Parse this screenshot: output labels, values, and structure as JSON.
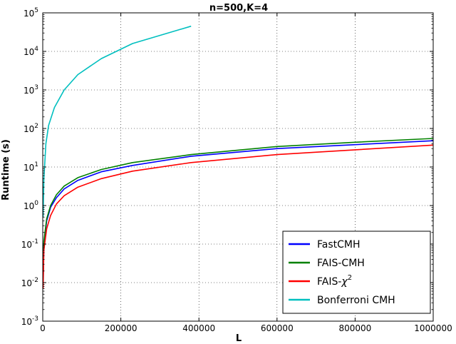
{
  "chart_data": {
    "type": "line",
    "title": "n=500,K=4",
    "xlabel": "L",
    "ylabel": "Runtime (s)",
    "xlim": [
      0,
      1000000
    ],
    "ylim_log10": [
      -3,
      5
    ],
    "yscale": "log",
    "grid": true,
    "legend_position": "lower-right",
    "x_ticks": [
      0,
      200000,
      400000,
      600000,
      800000,
      1000000
    ],
    "x_tick_labels": [
      "0",
      "200000",
      "400000",
      "600000",
      "800000",
      "1000000"
    ],
    "y_ticks": [
      {
        "base": "10",
        "exp": "-3"
      },
      {
        "base": "10",
        "exp": "-2"
      },
      {
        "base": "10",
        "exp": "-1"
      },
      {
        "base": "10",
        "exp": "0"
      },
      {
        "base": "10",
        "exp": "1"
      },
      {
        "base": "10",
        "exp": "2"
      },
      {
        "base": "10",
        "exp": "3"
      },
      {
        "base": "10",
        "exp": "4"
      },
      {
        "base": "10",
        "exp": "5"
      }
    ],
    "series": [
      {
        "name": "FastCMH",
        "color": "#0000ff",
        "x": [
          1000,
          3000,
          10000,
          20000,
          35000,
          55000,
          90000,
          150000,
          230000,
          380000,
          600000,
          800000,
          1000000
        ],
        "y": [
          0.01,
          0.1,
          0.4,
          0.9,
          1.6,
          2.7,
          4.5,
          7.5,
          11.0,
          19.0,
          30.0,
          38.0,
          48.0
        ]
      },
      {
        "name": "FAIS-CMH",
        "color": "#008000",
        "x": [
          1000,
          3000,
          10000,
          20000,
          35000,
          55000,
          90000,
          150000,
          230000,
          380000,
          600000,
          800000,
          1000000
        ],
        "y": [
          0.012,
          0.12,
          0.45,
          1.0,
          1.9,
          3.2,
          5.3,
          8.6,
          13.0,
          21.0,
          34.0,
          44.0,
          55.0
        ]
      },
      {
        "name": "FAIS-χ²",
        "name_main": "FAIS-",
        "name_chi": "χ",
        "name_sup": "2",
        "color": "#ff0000",
        "x": [
          1000,
          3000,
          10000,
          20000,
          35000,
          55000,
          90000,
          150000,
          230000,
          380000,
          600000,
          800000,
          1000000
        ],
        "y": [
          0.007,
          0.07,
          0.25,
          0.55,
          1.1,
          1.8,
          3.0,
          5.0,
          7.8,
          13.0,
          21.0,
          28.0,
          37.0
        ]
      },
      {
        "name": "Bonferroni CMH",
        "color": "#00bfbf",
        "x": [
          1000,
          3000,
          8000,
          15000,
          30000,
          55000,
          90000,
          150000,
          230000,
          380000
        ],
        "y": [
          0.5,
          5,
          40,
          120,
          350,
          1000,
          2500,
          6500,
          16000,
          45000
        ]
      }
    ]
  }
}
